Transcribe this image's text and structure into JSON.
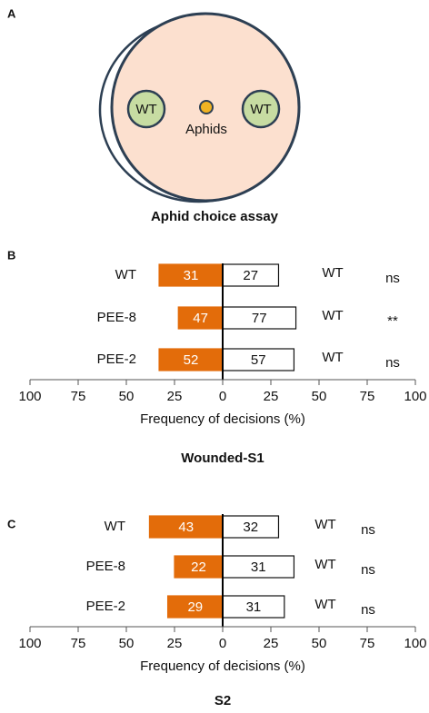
{
  "panel_a": {
    "label": "A",
    "left": "WT",
    "right": "WT",
    "center": "Aphids",
    "title": "Aphid choice assay"
  },
  "chart_data": [
    {
      "type": "butterfly-bar",
      "panel_label": "B",
      "title": "Wounded-S1",
      "xlabel": "Frequency of decisions (%)",
      "categories": [
        "WT",
        "PEE-8",
        "PEE-2"
      ],
      "right_labels": [
        "WT",
        "WT",
        "WT"
      ],
      "significance": [
        "ns",
        "**",
        "ns"
      ],
      "series": [
        {
          "color": "#e36c0a",
          "values": [
            -33,
            -23,
            -33
          ],
          "counts": [
            31,
            47,
            52
          ]
        },
        {
          "color": "#ffffff",
          "values": [
            29,
            38,
            37
          ],
          "counts": [
            27,
            77,
            57
          ]
        }
      ],
      "xlim": [
        -100,
        100
      ],
      "xticks": [
        {
          "value": -100,
          "label": "100"
        },
        {
          "value": -75,
          "label": "75"
        },
        {
          "value": -50,
          "label": "50"
        },
        {
          "value": -25,
          "label": "25"
        },
        0,
        25,
        50,
        75,
        100
      ]
    },
    {
      "type": "butterfly-bar",
      "panel_label": "C",
      "title": "S2",
      "xlabel": "Frequency of decisions (%)",
      "categories": [
        "WT",
        "PEE-8",
        "PEE-2"
      ],
      "right_labels": [
        "WT",
        "WT",
        "WT"
      ],
      "significance": [
        "ns",
        "ns",
        "ns"
      ],
      "series": [
        {
          "color": "#e36c0a",
          "values": [
            -38,
            -25,
            -28.5
          ],
          "counts": [
            43,
            22,
            29
          ]
        },
        {
          "color": "#ffffff",
          "values": [
            29,
            37,
            32
          ],
          "counts": [
            32,
            31,
            31
          ]
        }
      ],
      "xlim": [
        -100,
        100
      ],
      "xticks": [
        {
          "value": -100,
          "label": "100"
        },
        {
          "value": -75,
          "label": "75"
        },
        {
          "value": -50,
          "label": "50"
        },
        {
          "value": -25,
          "label": "25"
        },
        0,
        25,
        50,
        75,
        100
      ]
    }
  ]
}
